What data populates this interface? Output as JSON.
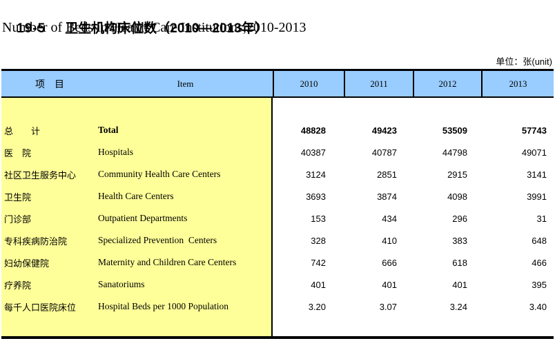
{
  "title": {
    "table_no": "19-5",
    "zh": "卫生机构床位数（2010—2013年）",
    "en": "Number of Beds in Health Care Institutions,2010-2013"
  },
  "unit_label": "单位：张(unit)",
  "table": {
    "header": {
      "item_zh": "项　目",
      "item_en": "Item",
      "years": [
        "2010",
        "2011",
        "2012",
        "2013"
      ]
    },
    "rows": [
      {
        "zh": "总　　计",
        "en": "Total",
        "values": [
          "48828",
          "49423",
          "53509",
          "57743"
        ]
      },
      {
        "zh": "医　院",
        "en": "Hospitals",
        "values": [
          "40387",
          "40787",
          "44798",
          "49071"
        ]
      },
      {
        "zh": "社区卫生服务中心",
        "en": "Community Health Care Centers",
        "values": [
          "3124",
          "2851",
          "2915",
          "3141"
        ]
      },
      {
        "zh": "卫生院",
        "en": "Health Care Centers",
        "values": [
          "3693",
          "3874",
          "4098",
          "3991"
        ]
      },
      {
        "zh": "门诊部",
        "en": "Outpatient Departments",
        "values": [
          "153",
          "434",
          "296",
          "31"
        ]
      },
      {
        "zh": "专科疾病防治院",
        "en": "Specialized Prevention  Centers",
        "values": [
          "328",
          "410",
          "383",
          "648"
        ]
      },
      {
        "zh": "妇幼保健院",
        "en": "Maternity and Children Care Centers",
        "values": [
          "742",
          "666",
          "618",
          "466"
        ]
      },
      {
        "zh": "疗养院",
        "en": "Sanatoriums",
        "values": [
          "401",
          "401",
          "401",
          "395"
        ]
      },
      {
        "zh": "每千人口医院床位",
        "en": "Hospital Beds per 1000 Population",
        "values": [
          "3.20",
          "3.07",
          "3.24",
          "3.40"
        ]
      }
    ],
    "colors": {
      "header_bg": "#99CCFF",
      "item_area_bg": "#FFFF99",
      "border": "#000000",
      "text": "#000000"
    }
  }
}
